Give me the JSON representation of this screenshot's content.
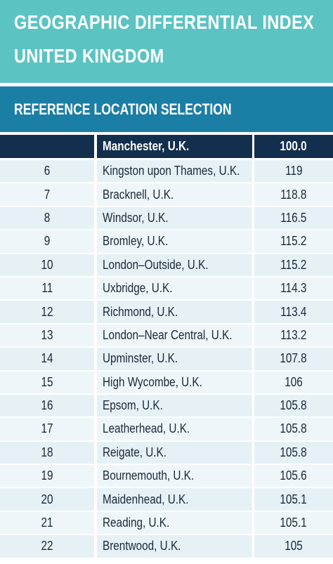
{
  "header": {
    "title_line1": "GEOGRAPHIC DIFFERENTIAL INDEX",
    "title_line2": "UNITED KINGDOM",
    "subtitle": "REFERENCE LOCATION SELECTION"
  },
  "colors": {
    "header_teal": "#5bc4c3",
    "subheader_blue": "#1b7ea5",
    "table_header_navy": "#132f4e",
    "row_bg": "#e6f1f6"
  },
  "table": {
    "reference": {
      "rank": "",
      "location": "Manchester, U.K.",
      "index": "100.0"
    },
    "rows": [
      {
        "rank": "6",
        "location": "Kingston upon Thames, U.K.",
        "index": "119"
      },
      {
        "rank": "7",
        "location": "Bracknell, U.K.",
        "index": "118.8"
      },
      {
        "rank": "8",
        "location": "Windsor, U.K.",
        "index": "116.5"
      },
      {
        "rank": "9",
        "location": "Bromley, U.K.",
        "index": "115.2"
      },
      {
        "rank": "10",
        "location": "London–Outside, U.K.",
        "index": "115.2"
      },
      {
        "rank": "11",
        "location": "Uxbridge, U.K.",
        "index": "114.3"
      },
      {
        "rank": "12",
        "location": "Richmond, U.K.",
        "index": "113.4"
      },
      {
        "rank": "13",
        "location": "London–Near Central, U.K.",
        "index": "113.2"
      },
      {
        "rank": "14",
        "location": "Upminster, U.K.",
        "index": "107.8"
      },
      {
        "rank": "15",
        "location": "High Wycombe, U.K.",
        "index": "106"
      },
      {
        "rank": "16",
        "location": "Epsom, U.K.",
        "index": "105.8"
      },
      {
        "rank": "17",
        "location": "Leatherhead, U.K.",
        "index": "105.8"
      },
      {
        "rank": "18",
        "location": "Reigate, U.K.",
        "index": "105.8"
      },
      {
        "rank": "19",
        "location": "Bournemouth, U.K.",
        "index": "105.6"
      },
      {
        "rank": "20",
        "location": "Maidenhead, U.K.",
        "index": "105.1"
      },
      {
        "rank": "21",
        "location": "Reading, U.K.",
        "index": "105.1"
      },
      {
        "rank": "22",
        "location": "Brentwood, U.K.",
        "index": "105"
      }
    ]
  }
}
